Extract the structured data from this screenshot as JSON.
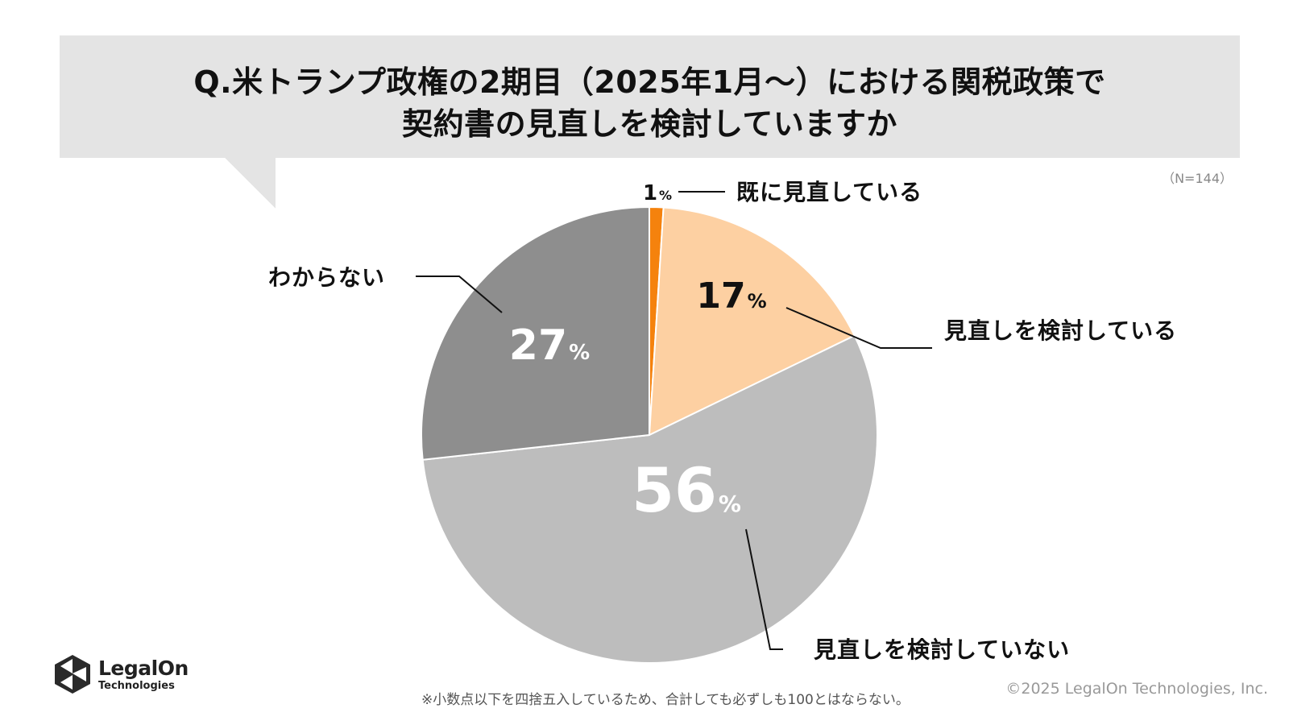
{
  "header": {
    "title_line1": "Q.米トランプ政権の2期目（2025年1月～）における関税政策で",
    "title_line2": "契約書の見直しを検討していますか",
    "sample_size": "（N=144）"
  },
  "chart_data": {
    "type": "pie",
    "start_angle_deg": 0,
    "direction": "clockwise",
    "slices": [
      {
        "label": "既に見直している",
        "value": 1,
        "value_label": "1",
        "unit": "%",
        "color": "#f5820d",
        "label_color": "#111111"
      },
      {
        "label": "見直しを検討している",
        "value": 17,
        "value_label": "17",
        "unit": "%",
        "color": "#fdd0a2",
        "label_color": "#111111"
      },
      {
        "label": "見直しを検討していない",
        "value": 56,
        "value_label": "56",
        "unit": "%",
        "color": "#bdbdbd",
        "label_color": "#ffffff"
      },
      {
        "label": "わからない",
        "value": 27,
        "value_label": "27",
        "unit": "%",
        "color": "#8e8e8e",
        "label_color": "#ffffff"
      }
    ]
  },
  "footer": {
    "note": "※小数点以下を四捨五入しているため、合計しても必ずしも100とはならない。",
    "copyright": "©2025 LegalOn Technologies, Inc.",
    "logo_name": "LegalOn",
    "logo_sub": "Technologies",
    "logo_icon": "hexagon-logo-icon"
  }
}
